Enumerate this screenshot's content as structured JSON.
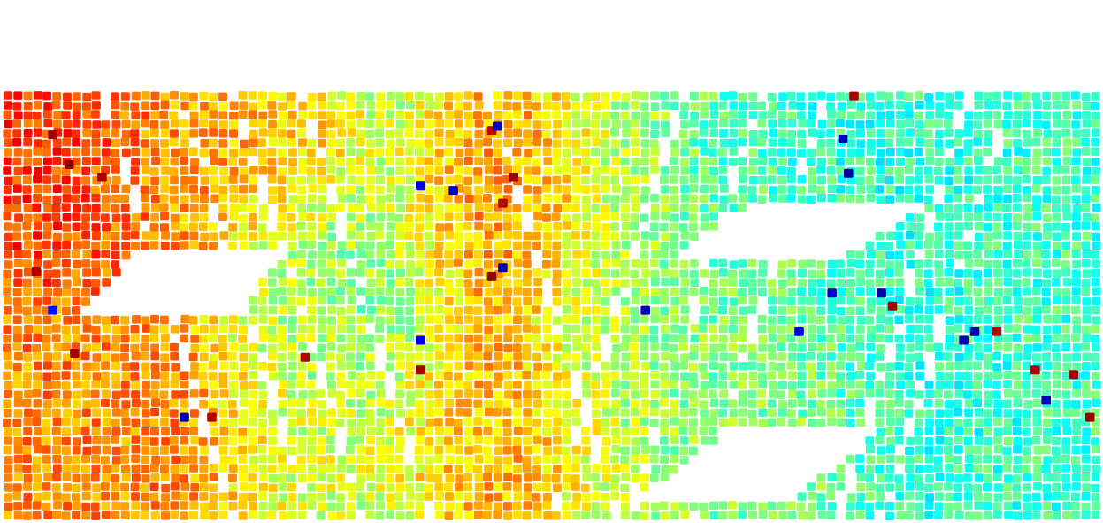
{
  "chart_data": {
    "type": "heatmap",
    "title": "",
    "xlabel": "",
    "ylabel": "",
    "colormap": "jet",
    "color_range": [
      0,
      1
    ],
    "axes_visible": false,
    "grid": false,
    "legend": "none",
    "colorbar": false,
    "regions": [
      {
        "name": "",
        "x_range": [
          0.0,
          0.12
        ],
        "y_range": [
          0.0,
          0.35
        ],
        "value": 0.82
      },
      {
        "name": "",
        "x_range": [
          0.0,
          0.22
        ],
        "y_range": [
          0.55,
          1.0
        ],
        "value": 0.74
      },
      {
        "name": "",
        "x_range": [
          0.1,
          0.22
        ],
        "y_range": [
          0.0,
          0.35
        ],
        "value": 0.72
      },
      {
        "name": "",
        "x_range": [
          0.22,
          0.32
        ],
        "y_range": [
          0.0,
          0.25
        ],
        "value": 0.7
      },
      {
        "name": "",
        "x_range": [
          0.22,
          0.3
        ],
        "y_range": [
          0.25,
          1.0
        ],
        "value": 0.55
      },
      {
        "name": "",
        "x_range": [
          0.3,
          0.38
        ],
        "y_range": [
          0.0,
          1.0
        ],
        "value": 0.48
      },
      {
        "name": "",
        "x_range": [
          0.36,
          0.52
        ],
        "y_range": [
          0.05,
          0.5
        ],
        "value": 0.72
      },
      {
        "name": "",
        "x_range": [
          0.31,
          0.52
        ],
        "y_range": [
          0.6,
          1.0
        ],
        "value": 0.7
      },
      {
        "name": "",
        "x_range": [
          0.52,
          0.62
        ],
        "y_range": [
          0.0,
          1.0
        ],
        "value": 0.55
      },
      {
        "name": "",
        "x_range": [
          0.6,
          0.72
        ],
        "y_range": [
          0.0,
          1.0
        ],
        "value": 0.45
      },
      {
        "name": "",
        "x_range": [
          0.62,
          0.75
        ],
        "y_range": [
          0.4,
          1.0
        ],
        "value": 0.56
      },
      {
        "name": "",
        "x_range": [
          0.72,
          0.92
        ],
        "y_range": [
          0.0,
          1.0
        ],
        "value": 0.42
      },
      {
        "name": "",
        "x_range": [
          0.92,
          1.0
        ],
        "y_range": [
          0.0,
          1.0
        ],
        "value": 0.44
      }
    ],
    "hotspots": [
      {
        "x": 0.06,
        "y": 0.17,
        "value": 0.98
      },
      {
        "x": 0.09,
        "y": 0.2,
        "value": 0.96
      },
      {
        "x": 0.045,
        "y": 0.1,
        "value": 0.97
      },
      {
        "x": 0.03,
        "y": 0.42,
        "value": 0.95
      },
      {
        "x": 0.065,
        "y": 0.61,
        "value": 0.96
      },
      {
        "x": 0.19,
        "y": 0.76,
        "value": 0.95
      },
      {
        "x": 0.465,
        "y": 0.2,
        "value": 0.97
      },
      {
        "x": 0.455,
        "y": 0.26,
        "value": 0.95
      },
      {
        "x": 0.445,
        "y": 0.43,
        "value": 0.98
      },
      {
        "x": 0.445,
        "y": 0.09,
        "value": 0.94
      },
      {
        "x": 0.275,
        "y": 0.62,
        "value": 0.95
      },
      {
        "x": 0.38,
        "y": 0.65,
        "value": 0.96
      },
      {
        "x": 0.775,
        "y": 0.01,
        "value": 0.96
      },
      {
        "x": 0.81,
        "y": 0.5,
        "value": 0.96
      },
      {
        "x": 0.905,
        "y": 0.56,
        "value": 0.95
      },
      {
        "x": 0.94,
        "y": 0.65,
        "value": 0.95
      },
      {
        "x": 0.975,
        "y": 0.66,
        "value": 0.96
      },
      {
        "x": 0.99,
        "y": 0.76,
        "value": 0.97
      }
    ],
    "coldspots": [
      {
        "x": 0.045,
        "y": 0.51,
        "value": 0.14
      },
      {
        "x": 0.165,
        "y": 0.76,
        "value": 0.05
      },
      {
        "x": 0.38,
        "y": 0.22,
        "value": 0.1
      },
      {
        "x": 0.41,
        "y": 0.23,
        "value": 0.08
      },
      {
        "x": 0.45,
        "y": 0.08,
        "value": 0.06
      },
      {
        "x": 0.455,
        "y": 0.41,
        "value": 0.05
      },
      {
        "x": 0.38,
        "y": 0.58,
        "value": 0.12
      },
      {
        "x": 0.585,
        "y": 0.51,
        "value": 0.06
      },
      {
        "x": 0.765,
        "y": 0.11,
        "value": 0.06
      },
      {
        "x": 0.77,
        "y": 0.19,
        "value": 0.04
      },
      {
        "x": 0.755,
        "y": 0.47,
        "value": 0.08
      },
      {
        "x": 0.8,
        "y": 0.47,
        "value": 0.05
      },
      {
        "x": 0.885,
        "y": 0.56,
        "value": 0.04
      },
      {
        "x": 0.875,
        "y": 0.58,
        "value": 0.04
      },
      {
        "x": 0.95,
        "y": 0.72,
        "value": 0.05
      },
      {
        "x": 0.725,
        "y": 0.56,
        "value": 0.12
      }
    ]
  }
}
